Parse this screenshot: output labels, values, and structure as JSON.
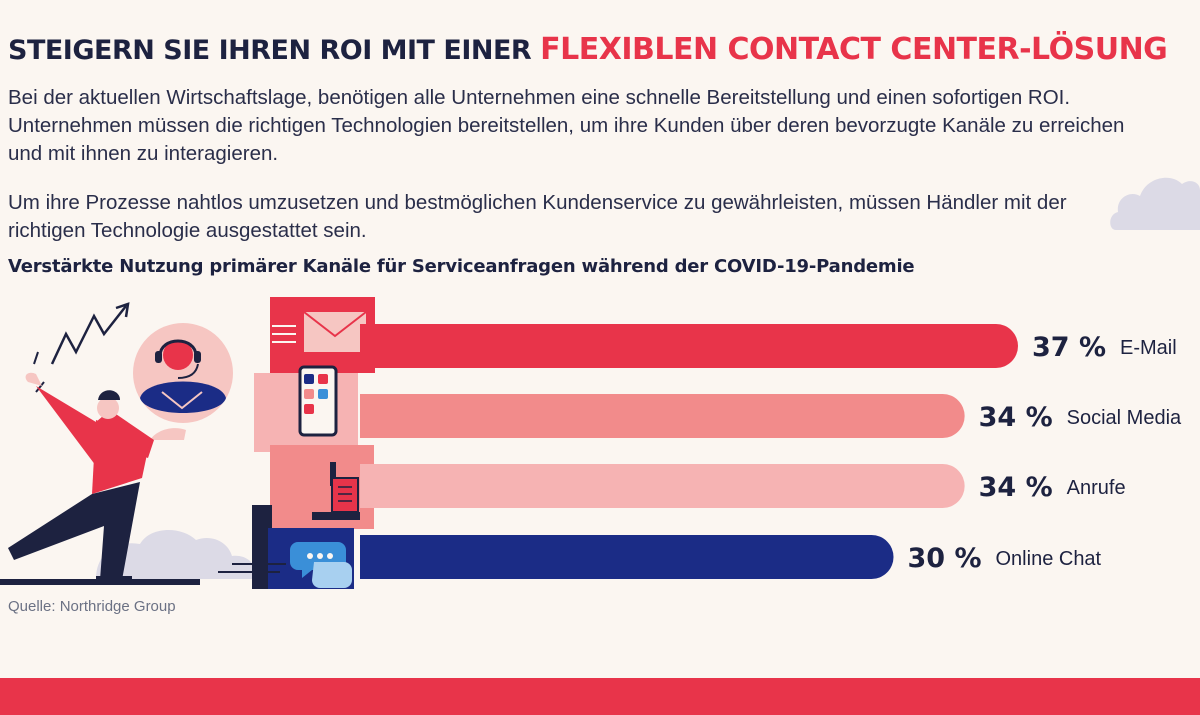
{
  "title": {
    "part1": "STEIGERN SIE IHREN ROI MIT EINER",
    "part2": "FLEXIBLEN CONTACT CENTER-LÖSUNG"
  },
  "intro": {
    "para1": "Bei der aktuellen Wirtschaftslage, benötigen alle Unternehmen eine schnelle Bereitstellung und einen sofortigen ROI. Unternehmen müssen die richtigen Technologien bereitstellen, um ihre Kunden über deren bevorzugte Kanäle zu erreichen und mit ihnen zu interagieren.",
    "para2": "Um ihre Prozesse nahtlos umzusetzen und bestmöglichen Kundenservice zu gewährleisten, müssen Händler mit der richtigen Technologie ausgestattet sein."
  },
  "source": "Quelle: Northridge Group",
  "colors": {
    "accent_red": "#e8344a",
    "coral": "#f28b8b",
    "pink": "#f6b3b3",
    "navy": "#1b2c86",
    "dark_text": "#1d2240"
  },
  "icons": [
    "email-icon",
    "smartphone-icon",
    "phone-icon",
    "chat-icon"
  ],
  "chart_data": {
    "type": "bar",
    "orientation": "horizontal",
    "title": "Verstärkte Nutzung primärer Kanäle für Serviceanfragen während der COVID-19-Pandemie",
    "categories": [
      "E-Mail",
      "Social Media",
      "Anrufe",
      "Online Chat"
    ],
    "values": [
      37,
      34,
      34,
      30
    ],
    "value_labels": [
      "37 %",
      "34 %",
      "34 %",
      "30 %"
    ],
    "unit": "%",
    "bar_colors": [
      "#e8344a",
      "#f28b8b",
      "#f6b3b3",
      "#1b2c86"
    ],
    "grid": false,
    "legend": "none"
  }
}
